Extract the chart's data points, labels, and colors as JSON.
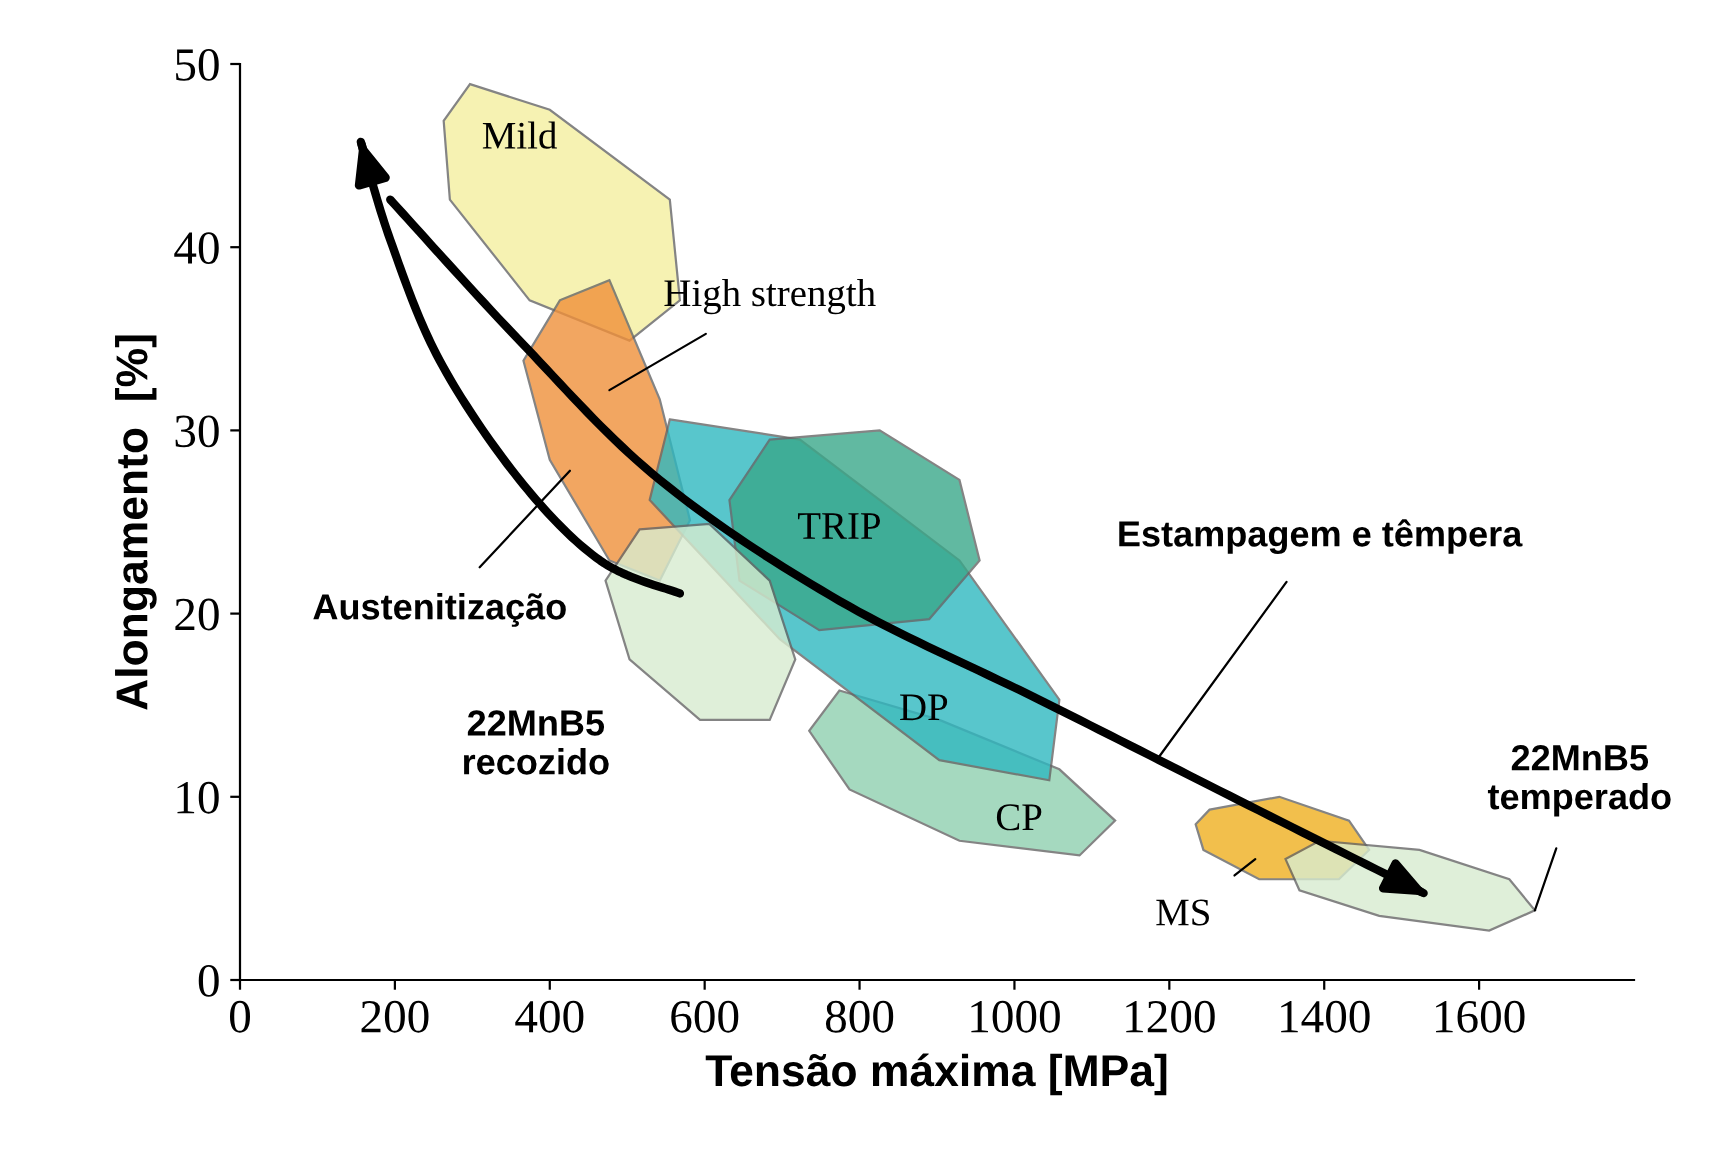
{
  "chart_data": {
    "type": "area",
    "xlabel": "Tensão máxima [MPa]",
    "ylabel": "Alongamento  [%]",
    "xlim": [
      0,
      1800
    ],
    "ylim": [
      0,
      50
    ],
    "xticks": [
      0,
      200,
      400,
      600,
      800,
      1000,
      1200,
      1400,
      1600
    ],
    "yticks": [
      0,
      10,
      20,
      30,
      40,
      50
    ],
    "grid": false,
    "series": [
      {
        "color": "#f5f0a0",
        "x": [
          297,
          400,
          555,
          568,
          503,
          374,
          271,
          263
        ],
        "values": [
          48.9,
          47.5,
          42.6,
          37.1,
          34.9,
          37.1,
          42.6,
          46.9
        ]
      },
      {
        "color": "#f0903a",
        "x": [
          413,
          477,
          542,
          581,
          542,
          477,
          400,
          366
        ],
        "values": [
          37.1,
          38.2,
          31.7,
          25.1,
          21.8,
          22.9,
          28.4,
          33.8
        ]
      },
      {
        "color": "#8fd0b0",
        "x": [
          774,
          903,
          1058,
          1130,
          1084,
          929,
          787,
          735
        ],
        "values": [
          15.8,
          14.2,
          11.5,
          8.7,
          6.8,
          7.6,
          10.4,
          13.6
        ]
      },
      {
        "color": "#2fb8c0",
        "x": [
          555,
          723,
          929,
          1058,
          1045,
          903,
          697,
          529
        ],
        "values": [
          30.6,
          29.5,
          22.9,
          15.3,
          10.9,
          12.0,
          18.6,
          26.2
        ]
      },
      {
        "color": "#3aa88a",
        "x": [
          684,
          826,
          929,
          955,
          890,
          748,
          645,
          632
        ],
        "values": [
          29.5,
          30.0,
          27.3,
          22.9,
          19.7,
          19.1,
          21.8,
          26.2
        ]
      },
      {
        "color": "#d8ecd0",
        "x": [
          516,
          606,
          684,
          717,
          684,
          594,
          503,
          472
        ],
        "values": [
          24.6,
          24.9,
          21.8,
          17.5,
          14.2,
          14.2,
          17.5,
          21.8
        ]
      },
      {
        "color": "#f0b020",
        "x": [
          1252,
          1342,
          1432,
          1458,
          1419,
          1316,
          1244,
          1234
        ],
        "values": [
          9.3,
          10.0,
          8.7,
          7.1,
          5.5,
          5.5,
          7.1,
          8.5
        ]
      },
      {
        "color": "#d8ecd0",
        "x": [
          1394,
          1523,
          1639,
          1672,
          1613,
          1471,
          1368,
          1350
        ],
        "values": [
          7.6,
          7.1,
          5.5,
          3.8,
          2.7,
          3.5,
          4.9,
          6.6
        ]
      },
      {
        "type": "line",
        "color": "#000000",
        "x": [
          568,
          465,
          361,
          258,
          194,
          155
        ],
        "values": [
          21.1,
          22.9,
          27.3,
          33.8,
          40.4,
          45.9
        ]
      },
      {
        "type": "line",
        "color": "#000000",
        "x": [
          194,
          361,
          542,
          774,
          1032,
          1290,
          1535
        ],
        "values": [
          42.6,
          34.9,
          27.3,
          20.7,
          15.3,
          9.8,
          4.6
        ]
      }
    ],
    "annotations": [
      "Mild",
      "High strength",
      "TRIP",
      "DP",
      "CP",
      "MS",
      "Austenitização",
      {
        "text": "Estampagem e têmpera",
        "x": 1187,
        "y": 12.2
      },
      "22MnB5\nrecozido",
      {
        "text": "22MnB5\ntemperado",
        "x": 1672,
        "y": 3.8
      }
    ]
  }
}
